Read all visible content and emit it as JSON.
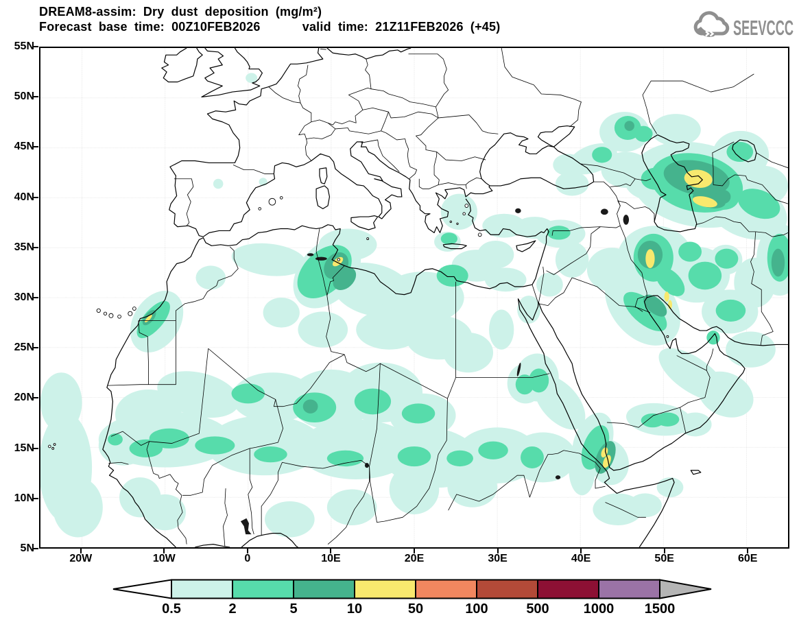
{
  "header": {
    "title_line1": "DREAM8-assim: Dry dust deposition (mg/m²)",
    "title_line2": "Forecast base time: 00Z10FEB2026      valid time: 21Z11FEB2026 (+45)",
    "logo_text": "SEEVCCC"
  },
  "chart_data": {
    "type": "heatmap",
    "title": "DREAM8-assim: Dry dust deposition (mg/m²)",
    "model": "DREAM8-assim",
    "variable": "Dry dust deposition",
    "units": "mg/m²",
    "forecast_base_time": "00Z10FEB2026",
    "valid_time": "21Z11FEB2026",
    "forecast_step": "+45",
    "lon_range": [
      -25,
      65
    ],
    "lat_range": [
      5,
      55
    ],
    "lon_tick_labels": [
      "20W",
      "10W",
      "0",
      "10E",
      "20E",
      "30E",
      "40E",
      "50E",
      "60E"
    ],
    "lon_tick_values": [
      -20,
      -10,
      0,
      10,
      20,
      30,
      40,
      50,
      60
    ],
    "lat_tick_labels": [
      "55N",
      "50N",
      "45N",
      "40N",
      "35N",
      "30N",
      "25N",
      "20N",
      "15N",
      "10N",
      "5N"
    ],
    "lat_tick_values": [
      55,
      50,
      45,
      40,
      35,
      30,
      25,
      20,
      15,
      10,
      5
    ],
    "grid": "dotted",
    "colorbar": {
      "levels": [
        "0.5",
        "2",
        "5",
        "10",
        "50",
        "100",
        "500",
        "1000",
        "1500"
      ],
      "colors": [
        "#ffffff",
        "#cdf2e9",
        "#57dcab",
        "#45b38d",
        "#f8e96e",
        "#f1875f",
        "#b34a38",
        "#8d1034",
        "#9b73a6",
        "#b5b5b5"
      ]
    },
    "regions_encoding": [
      "lon",
      "lat",
      "rx_deg",
      "ry_deg",
      "rotation_deg"
    ],
    "deposition_regions": {
      "1": [
        [
          -10,
          15.8,
          8,
          2.8,
          0
        ],
        [
          2,
          15.2,
          7,
          3,
          0
        ],
        [
          13,
          14.8,
          7,
          3,
          0
        ],
        [
          22,
          14,
          6,
          3,
          5
        ],
        [
          30,
          14.2,
          5,
          2.8,
          0
        ],
        [
          35.5,
          14,
          4,
          2.5,
          0
        ],
        [
          -6,
          20.3,
          5,
          2.2,
          10
        ],
        [
          3,
          20,
          5,
          2.5,
          0
        ],
        [
          10,
          19.8,
          5,
          3,
          0
        ],
        [
          16,
          20.5,
          5,
          3,
          0
        ],
        [
          21,
          18.2,
          4,
          2.2,
          0
        ],
        [
          -12,
          18.3,
          4,
          2.5,
          0
        ],
        [
          -15,
          15.2,
          3,
          2,
          0
        ],
        [
          -22,
          13,
          3.2,
          5.5,
          0
        ],
        [
          -22.5,
          19.5,
          2.5,
          3,
          0
        ],
        [
          -20.5,
          9,
          3,
          3,
          0
        ],
        [
          -13,
          10,
          2.5,
          2,
          0
        ],
        [
          -10,
          8.5,
          2.5,
          1.8,
          0
        ],
        [
          5,
          7.8,
          3,
          1.8,
          0
        ],
        [
          12.5,
          9,
          3,
          1.8,
          0
        ],
        [
          20,
          10.8,
          3,
          2.5,
          0
        ],
        [
          27,
          11,
          3,
          2,
          0
        ],
        [
          -11,
          27.6,
          3.6,
          2.6,
          -42
        ],
        [
          -4.5,
          32,
          1.8,
          1.2,
          0
        ],
        [
          4,
          28.5,
          2.2,
          1.5,
          0
        ],
        [
          9,
          26.8,
          3,
          1.8,
          0
        ],
        [
          2.5,
          33.8,
          4.5,
          1.6,
          5
        ],
        [
          9.5,
          32.5,
          4.5,
          3,
          -35
        ],
        [
          15,
          30.8,
          5,
          2.6,
          10
        ],
        [
          21,
          30,
          5,
          2.6,
          0
        ],
        [
          17,
          26.8,
          4,
          2,
          0
        ],
        [
          23,
          26,
          4,
          2.2,
          0
        ],
        [
          26.5,
          24.5,
          3,
          2,
          0
        ],
        [
          30.5,
          26.8,
          1.5,
          2,
          0
        ],
        [
          12,
          35.3,
          3.5,
          1.6,
          0
        ],
        [
          27.5,
          33.2,
          3,
          1.6,
          0
        ],
        [
          31,
          31.8,
          2.5,
          1.2,
          0
        ],
        [
          21.5,
          16.5,
          2,
          1.2,
          0
        ],
        [
          30.8,
          37.2,
          2.6,
          1.2,
          0
        ],
        [
          34.5,
          37,
          2.4,
          1.1,
          0
        ],
        [
          37.6,
          36.4,
          3,
          1.4,
          0
        ],
        [
          25.4,
          38.6,
          2.2,
          1.8,
          0
        ],
        [
          24,
          35.6,
          1.6,
          1,
          0
        ],
        [
          29.8,
          34.3,
          2.2,
          1.4,
          0
        ],
        [
          36.3,
          31.3,
          1.6,
          1.2,
          0
        ],
        [
          33.8,
          28.8,
          1.4,
          1.4,
          0
        ],
        [
          39,
          33.8,
          2,
          1.8,
          0
        ],
        [
          34.8,
          22,
          2.6,
          2.4,
          0
        ],
        [
          33.4,
          21.4,
          2.2,
          2,
          0
        ],
        [
          37.5,
          19.5,
          3.6,
          2,
          38
        ],
        [
          40.2,
          12.8,
          1.6,
          2.6,
          0
        ],
        [
          44.5,
          8.8,
          3,
          1.6,
          0
        ],
        [
          47.8,
          9.2,
          2,
          1.2,
          0
        ],
        [
          50.8,
          11,
          1.6,
          1,
          0
        ],
        [
          41.5,
          15.5,
          2.2,
          3.2,
          30
        ],
        [
          43.5,
          13.5,
          2.4,
          2.2,
          35
        ],
        [
          49.5,
          17.8,
          4,
          1.6,
          5
        ],
        [
          53.8,
          17.3,
          2,
          1.2,
          0
        ],
        [
          53.5,
          22.3,
          4.5,
          1.8,
          28
        ],
        [
          57.5,
          20.3,
          3.4,
          2.2,
          15
        ],
        [
          60.5,
          24.8,
          3,
          1.8,
          0
        ],
        [
          47.5,
          29.2,
          5,
          3.4,
          35
        ],
        [
          43.8,
          32.8,
          3,
          2.2,
          0
        ],
        [
          49,
          33.8,
          4.6,
          3.4,
          0
        ],
        [
          54,
          32.3,
          4,
          2.8,
          0
        ],
        [
          58,
          28.6,
          3.4,
          2.2,
          0
        ],
        [
          61,
          31.5,
          2.5,
          2.5,
          0
        ],
        [
          64,
          33.8,
          2.8,
          3.6,
          0
        ],
        [
          57.5,
          33.8,
          2,
          1.5,
          0
        ],
        [
          54,
          41.3,
          8,
          4.2,
          8
        ],
        [
          60,
          38.8,
          5,
          2.8,
          15
        ],
        [
          48.3,
          41.8,
          3,
          2,
          0
        ],
        [
          45.5,
          42.8,
          3,
          1.8,
          0
        ],
        [
          41.5,
          43.9,
          3,
          1.4,
          -15
        ],
        [
          38.5,
          43.3,
          1.8,
          1.1,
          0
        ],
        [
          45.3,
          46.6,
          3,
          2,
          0
        ],
        [
          51.5,
          46.8,
          3,
          1.6,
          0
        ],
        [
          59.3,
          44.3,
          3.4,
          2.4,
          0
        ],
        [
          62,
          41.2,
          3,
          2,
          0
        ],
        [
          39,
          41.4,
          2,
          1.2,
          0
        ],
        [
          0.4,
          52,
          0.7,
          0.5,
          0
        ],
        [
          -3.6,
          41.4,
          0.6,
          0.5,
          0
        ],
        [
          1.8,
          41.6,
          0.5,
          0.4,
          0
        ]
      ],
      "2": [
        [
          -16,
          15.8,
          0.9,
          0.6,
          0
        ],
        [
          -12.3,
          14.9,
          2,
          0.9,
          0
        ],
        [
          -9.5,
          15.9,
          2.4,
          1,
          0
        ],
        [
          -4,
          15.2,
          2.4,
          0.9,
          0
        ],
        [
          2.7,
          14.3,
          2,
          0.8,
          0
        ],
        [
          11.7,
          13.9,
          2.2,
          0.8,
          0
        ],
        [
          20,
          14.1,
          2,
          1,
          0
        ],
        [
          29.5,
          14.7,
          1.8,
          0.9,
          0
        ],
        [
          34.2,
          14,
          1.4,
          1.1,
          0
        ],
        [
          25.5,
          13.9,
          1.6,
          0.8,
          0
        ],
        [
          0,
          20.4,
          2,
          1,
          0
        ],
        [
          8,
          19,
          2.6,
          1.5,
          0
        ],
        [
          15,
          19.6,
          2.2,
          1.3,
          0
        ],
        [
          20.5,
          18.4,
          2,
          1,
          0
        ],
        [
          -11.4,
          27.8,
          2.5,
          1.1,
          -42
        ],
        [
          9.2,
          32.6,
          3.6,
          2.2,
          -32
        ],
        [
          24.6,
          32.2,
          1.9,
          1.1,
          0
        ],
        [
          24.2,
          35.9,
          1,
          0.6,
          0
        ],
        [
          37.4,
          36.5,
          1.4,
          0.7,
          0
        ],
        [
          35,
          21.7,
          1.2,
          1.2,
          0
        ],
        [
          33.3,
          21.3,
          1.1,
          1,
          0
        ],
        [
          41.8,
          15,
          1.4,
          2.4,
          28
        ],
        [
          48.7,
          17.7,
          1.4,
          0.7,
          0
        ],
        [
          50.5,
          17.8,
          1.4,
          0.7,
          0
        ],
        [
          47.8,
          28.6,
          3,
          1.3,
          33
        ],
        [
          48.8,
          34,
          2.4,
          2.4,
          0
        ],
        [
          50.8,
          31.6,
          2,
          1.1,
          35
        ],
        [
          55,
          32.2,
          2,
          1.4,
          0
        ],
        [
          53.2,
          34.6,
          1.4,
          1,
          0
        ],
        [
          57.6,
          33.9,
          1.4,
          1,
          0
        ],
        [
          58.1,
          28.7,
          1.8,
          1.1,
          0
        ],
        [
          56,
          26,
          0.8,
          0.7,
          0
        ],
        [
          64,
          34,
          1.5,
          2.4,
          0
        ],
        [
          54,
          41.5,
          5.6,
          2.9,
          8
        ],
        [
          49,
          41.9,
          1.7,
          1.1,
          0
        ],
        [
          45.7,
          47,
          1.6,
          1.2,
          0
        ],
        [
          47.6,
          46.4,
          1.1,
          0.8,
          0
        ],
        [
          42.6,
          44.3,
          1.2,
          0.8,
          0
        ],
        [
          59.2,
          44.6,
          1.6,
          1,
          0
        ],
        [
          61.5,
          39.4,
          2.6,
          1.4,
          15
        ],
        [
          57.3,
          40,
          1.8,
          1.2,
          0
        ]
      ],
      "3": [
        [
          7.5,
          19.1,
          0.9,
          0.7,
          0
        ],
        [
          10.6,
          33.2,
          1.6,
          1.2,
          -35
        ],
        [
          11.6,
          31.9,
          1.5,
          1,
          -30
        ],
        [
          -11.9,
          28,
          1,
          0.5,
          -42
        ],
        [
          48.4,
          34.3,
          1.5,
          1.4,
          0
        ],
        [
          49,
          29.2,
          1.6,
          0.8,
          33
        ],
        [
          54,
          42,
          4,
          1.7,
          8
        ],
        [
          55.5,
          39.8,
          2,
          0.8,
          10
        ],
        [
          57.2,
          40.1,
          0.9,
          0.7,
          0
        ],
        [
          43,
          14,
          1,
          1.8,
          30
        ],
        [
          45.9,
          47.2,
          0.6,
          0.5,
          0
        ],
        [
          63.8,
          33.5,
          0.8,
          1.4,
          0
        ]
      ],
      "4": [
        [
          10.8,
          33.6,
          0.7,
          0.35,
          -30
        ],
        [
          -12,
          27.9,
          0.55,
          0.18,
          -40
        ],
        [
          54.2,
          41.9,
          1.7,
          0.9,
          5
        ],
        [
          55,
          39.6,
          1.5,
          0.5,
          10
        ],
        [
          48.4,
          33.9,
          0.55,
          0.95,
          0
        ],
        [
          50.4,
          30.1,
          0.3,
          0.5,
          0
        ],
        [
          50.8,
          29.3,
          0.25,
          0.45,
          0
        ],
        [
          42.9,
          14.5,
          0.35,
          0.55,
          30
        ],
        [
          43.2,
          13.6,
          0.4,
          0.7,
          30
        ]
      ]
    }
  }
}
